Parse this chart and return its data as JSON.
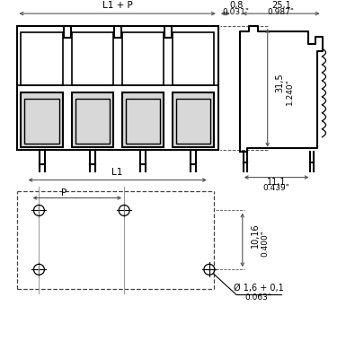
{
  "bg_color": "#ffffff",
  "line_color": "#000000",
  "dim_color": "#555555",
  "dims": {
    "L1_P_label": "L1 + P",
    "L1_label": "L1",
    "P_label": "P",
    "d08_mm": "0,8",
    "d08_in": "0.031\"",
    "d251_mm": "25,1",
    "d251_in": "0.987\"",
    "d315_mm": "31,5",
    "d315_in": "1.240\"",
    "d111_mm": "11,1",
    "d111_in": "0.439\"",
    "d1016_mm": "10,16",
    "d1016_in": "0.400\"",
    "d016_mm": "Ø 1,6 + 0,1",
    "d016_in": "0.063\""
  }
}
